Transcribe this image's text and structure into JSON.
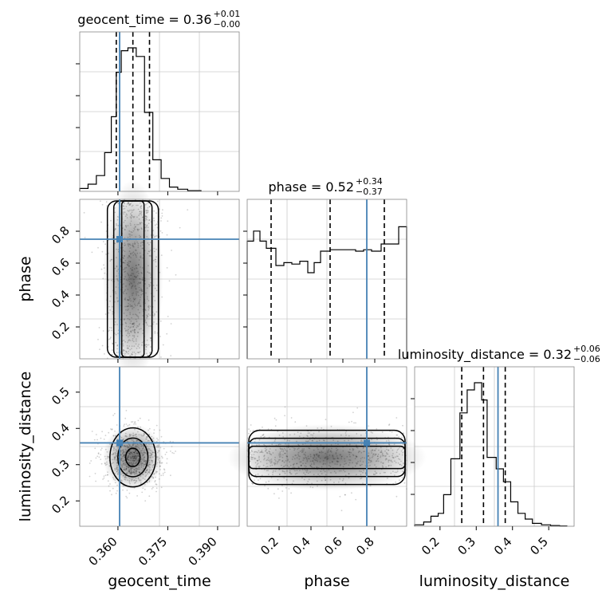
{
  "chart_data": {
    "type": "corner",
    "parameters": [
      "geocent_time",
      "phase",
      "luminosity_distance"
    ],
    "truth_color": "#4682b4",
    "diagonal_titles": [
      {
        "param": "geocent_time",
        "text": "geocent_time = 0.36",
        "sup": "+0.01",
        "sub": "−0.00"
      },
      {
        "param": "phase",
        "text": "phase = 0.52",
        "sup": "+0.34",
        "sub": "−0.37"
      },
      {
        "param": "luminosity_distance",
        "text": "luminosity_distance = 0.32",
        "sup": "+0.06",
        "sub": "−0.06"
      }
    ],
    "axis_labels": {
      "x": [
        "geocent_time",
        "phase",
        "luminosity_distance"
      ],
      "y": [
        "phase",
        "luminosity_distance"
      ]
    },
    "ranges": {
      "geocent_time": [
        0.3485,
        0.3965
      ],
      "phase": [
        0.0,
        1.0
      ],
      "luminosity_distance": [
        0.13,
        0.57
      ]
    },
    "ticks": {
      "geocent_time": [
        "0.360",
        "0.375",
        "0.390"
      ],
      "phase": [
        "0.2",
        "0.4",
        "0.6",
        "0.8"
      ],
      "luminosity_distance": [
        "0.2",
        "0.3",
        "0.4",
        "0.5"
      ]
    },
    "truths": {
      "geocent_time": 0.3605,
      "phase": 0.75,
      "luminosity_distance": 0.36
    },
    "quantiles": {
      "geocent_time": [
        0.3595,
        0.3645,
        0.3695
      ],
      "phase": [
        0.15,
        0.52,
        0.86
      ],
      "luminosity_distance": [
        0.26,
        0.32,
        0.38
      ]
    },
    "histograms": {
      "geocent_time": {
        "edges": [
          0.3485,
          0.351,
          0.3535,
          0.356,
          0.358,
          0.3595,
          0.361,
          0.363,
          0.3655,
          0.368,
          0.3705,
          0.373,
          0.3755,
          0.378,
          0.381,
          0.385
        ],
        "counts": [
          0.02,
          0.05,
          0.11,
          0.27,
          0.52,
          0.83,
          0.98,
          1.0,
          0.94,
          0.55,
          0.22,
          0.09,
          0.03,
          0.015,
          0.005
        ]
      },
      "phase": {
        "edges": [
          0.0,
          0.04,
          0.08,
          0.12,
          0.18,
          0.23,
          0.28,
          0.33,
          0.38,
          0.42,
          0.46,
          0.52,
          0.58,
          0.63,
          0.68,
          0.73,
          0.78,
          0.84,
          0.9,
          0.95,
          1.0
        ],
        "counts": [
          0.82,
          0.89,
          0.82,
          0.77,
          0.65,
          0.67,
          0.66,
          0.68,
          0.6,
          0.67,
          0.75,
          0.76,
          0.76,
          0.76,
          0.75,
          0.76,
          0.75,
          0.8,
          0.8,
          0.92
        ]
      },
      "luminosity_distance": {
        "edges": [
          0.13,
          0.155,
          0.175,
          0.195,
          0.21,
          0.23,
          0.255,
          0.275,
          0.295,
          0.315,
          0.33,
          0.355,
          0.375,
          0.395,
          0.415,
          0.435,
          0.455,
          0.48,
          0.505,
          0.53,
          0.55
        ],
        "counts": [
          0.01,
          0.03,
          0.07,
          0.09,
          0.22,
          0.47,
          0.79,
          0.95,
          1.0,
          0.88,
          0.48,
          0.4,
          0.31,
          0.17,
          0.09,
          0.05,
          0.02,
          0.01,
          0.005,
          0.002
        ]
      }
    }
  }
}
